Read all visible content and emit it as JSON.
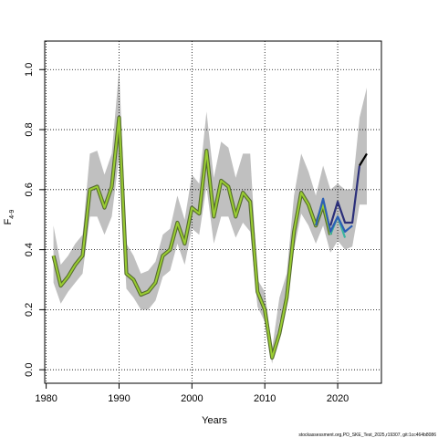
{
  "chart_data": {
    "type": "line",
    "xlabel": "Years",
    "ylabel": "F",
    "ylabel_subscript": "4-9",
    "xlim": [
      1979.8,
      2026.0
    ],
    "ylim": [
      -0.045,
      1.095
    ],
    "x_ticks": [
      1980,
      1990,
      2000,
      2010,
      2020
    ],
    "y_ticks": [
      0.0,
      0.2,
      0.4,
      0.6,
      0.8,
      1.0
    ],
    "x_tick_labels": [
      "1980",
      "1990",
      "2000",
      "2010",
      "2020"
    ],
    "y_tick_labels": [
      "0.0",
      "0.2",
      "0.4",
      "0.6",
      "0.8",
      "1.0"
    ],
    "grid": true,
    "grid_style": "dotted",
    "band_color": "#c0c0c0",
    "colors": {
      "base_outer": "#556b2f",
      "base_inner": "#9acd32",
      "retro_teal": "#3cb4a0",
      "retro_blue": "#2c5fb5",
      "retro_navy": "#2b2f7a",
      "final": "#000000"
    },
    "confidence_band": {
      "x": [
        1981,
        1982,
        1983,
        1984,
        1985,
        1986,
        1987,
        1988,
        1989,
        1990,
        1991,
        1992,
        1993,
        1994,
        1995,
        1996,
        1997,
        1998,
        1999,
        2000,
        2001,
        2002,
        2003,
        2004,
        2005,
        2006,
        2007,
        2008,
        2009,
        2010,
        2011,
        2012,
        2013,
        2014,
        2015,
        2016,
        2017,
        2018,
        2019,
        2020,
        2021,
        2022,
        2023,
        2024
      ],
      "upper": [
        0.48,
        0.35,
        0.38,
        0.42,
        0.45,
        0.72,
        0.73,
        0.65,
        0.72,
        1.0,
        0.42,
        0.38,
        0.32,
        0.33,
        0.36,
        0.45,
        0.47,
        0.58,
        0.5,
        0.65,
        0.62,
        0.86,
        0.64,
        0.76,
        0.74,
        0.64,
        0.72,
        0.72,
        0.3,
        0.26,
        0.07,
        0.24,
        0.32,
        0.58,
        0.72,
        0.66,
        0.58,
        0.68,
        0.6,
        0.62,
        0.6,
        0.6,
        0.84,
        0.94
      ],
      "lower": [
        0.29,
        0.22,
        0.26,
        0.29,
        0.32,
        0.51,
        0.51,
        0.45,
        0.51,
        0.71,
        0.27,
        0.24,
        0.2,
        0.2,
        0.23,
        0.31,
        0.33,
        0.42,
        0.35,
        0.47,
        0.45,
        0.61,
        0.42,
        0.51,
        0.51,
        0.44,
        0.49,
        0.46,
        0.21,
        0.16,
        0.02,
        0.16,
        0.23,
        0.4,
        0.52,
        0.48,
        0.42,
        0.48,
        0.39,
        0.43,
        0.4,
        0.41,
        0.55,
        0.55
      ]
    },
    "series": [
      {
        "style": "base",
        "x": [
          1981,
          1982,
          1983,
          1984,
          1985,
          1986,
          1987,
          1988,
          1989,
          1990,
          1991,
          1992,
          1993,
          1994,
          1995,
          1996,
          1997,
          1998,
          1999,
          2000,
          2001,
          2002,
          2003,
          2004,
          2005,
          2006,
          2007,
          2008,
          2009,
          2010,
          2011,
          2012,
          2013,
          2014,
          2015,
          2016,
          2017,
          2018,
          2019
        ],
        "values": [
          0.38,
          0.28,
          0.31,
          0.35,
          0.38,
          0.6,
          0.61,
          0.54,
          0.61,
          0.84,
          0.32,
          0.3,
          0.25,
          0.26,
          0.29,
          0.38,
          0.4,
          0.49,
          0.42,
          0.54,
          0.52,
          0.73,
          0.51,
          0.63,
          0.61,
          0.51,
          0.59,
          0.56,
          0.26,
          0.2,
          0.04,
          0.12,
          0.24,
          0.46,
          0.59,
          0.55,
          0.48,
          0.55,
          0.45
        ]
      },
      {
        "style": "retro_teal",
        "x": [
          2019,
          2020,
          2021
        ],
        "values": [
          0.45,
          0.51,
          0.44
        ]
      },
      {
        "style": "retro_blue",
        "x": [
          2017,
          2018,
          2019,
          2020,
          2021,
          2022
        ],
        "values": [
          0.48,
          0.57,
          0.46,
          0.51,
          0.46,
          0.48
        ]
      },
      {
        "style": "retro_navy",
        "x": [
          2019,
          2020,
          2021,
          2022,
          2023
        ],
        "values": [
          0.48,
          0.56,
          0.49,
          0.49,
          0.68
        ]
      },
      {
        "style": "final",
        "x": [
          2023,
          2024
        ],
        "values": [
          0.68,
          0.72
        ]
      }
    ]
  },
  "watermark": "stockassessment.org,PO_SKE_Test_2025,r19307, git:1cc464b8086"
}
